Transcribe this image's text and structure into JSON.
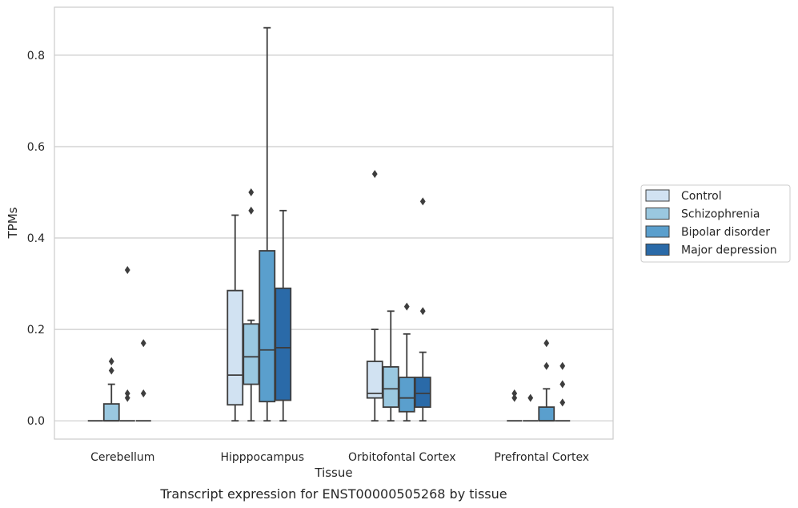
{
  "chart_data": {
    "type": "box",
    "caption": "Transcript expression for ENST00000505268 by tissue",
    "xlabel": "Tissue",
    "ylabel": "TPMs",
    "ylim": [
      -0.04,
      0.905
    ],
    "yticks": [
      0.0,
      0.2,
      0.4,
      0.6,
      0.8
    ],
    "ytick_labels": [
      "0.0",
      "0.2",
      "0.4",
      "0.6",
      "0.8"
    ],
    "grid": "horizontal",
    "legend_position": "right",
    "categories": [
      "Cerebellum",
      "Hipppocampus",
      "Orbitofontal Cortex",
      "Prefrontal Cortex"
    ],
    "series": [
      {
        "name": "Control",
        "color": "#d1e2f2",
        "boxes": [
          {
            "whislo": 0.0,
            "q1": 0.0,
            "med": 0.0,
            "q3": 0.0,
            "whishi": 0.0,
            "fliers": []
          },
          {
            "whislo": 0.0,
            "q1": 0.035,
            "med": 0.1,
            "q3": 0.285,
            "whishi": 0.45,
            "fliers": []
          },
          {
            "whislo": 0.0,
            "q1": 0.05,
            "med": 0.06,
            "q3": 0.13,
            "whishi": 0.2,
            "fliers": [
              0.54
            ]
          },
          {
            "whislo": 0.0,
            "q1": 0.0,
            "med": 0.0,
            "q3": 0.0,
            "whishi": 0.0,
            "fliers": [
              0.05,
              0.06
            ]
          }
        ]
      },
      {
        "name": "Schizophrenia",
        "color": "#9ac8e0",
        "boxes": [
          {
            "whislo": 0.0,
            "q1": 0.0,
            "med": 0.0,
            "q3": 0.037,
            "whishi": 0.08,
            "fliers": [
              0.11,
              0.13
            ]
          },
          {
            "whislo": 0.0,
            "q1": 0.08,
            "med": 0.14,
            "q3": 0.212,
            "whishi": 0.22,
            "fliers": [
              0.46,
              0.5
            ]
          },
          {
            "whislo": 0.0,
            "q1": 0.03,
            "med": 0.07,
            "q3": 0.118,
            "whishi": 0.24,
            "fliers": []
          },
          {
            "whislo": 0.0,
            "q1": 0.0,
            "med": 0.0,
            "q3": 0.0,
            "whishi": 0.0,
            "fliers": [
              0.05
            ]
          }
        ]
      },
      {
        "name": "Bipolar disorder",
        "color": "#5a9fcd",
        "boxes": [
          {
            "whislo": 0.0,
            "q1": 0.0,
            "med": 0.0,
            "q3": 0.0,
            "whishi": 0.0,
            "fliers": [
              0.05,
              0.06,
              0.33
            ]
          },
          {
            "whislo": 0.0,
            "q1": 0.042,
            "med": 0.155,
            "q3": 0.372,
            "whishi": 0.86,
            "fliers": []
          },
          {
            "whislo": 0.0,
            "q1": 0.02,
            "med": 0.05,
            "q3": 0.095,
            "whishi": 0.19,
            "fliers": [
              0.25
            ]
          },
          {
            "whislo": 0.0,
            "q1": 0.0,
            "med": 0.0,
            "q3": 0.03,
            "whishi": 0.07,
            "fliers": [
              0.12,
              0.17
            ]
          }
        ]
      },
      {
        "name": "Major depression",
        "color": "#2a6aa8",
        "boxes": [
          {
            "whislo": 0.0,
            "q1": 0.0,
            "med": 0.0,
            "q3": 0.0,
            "whishi": 0.0,
            "fliers": [
              0.06,
              0.17
            ]
          },
          {
            "whislo": 0.0,
            "q1": 0.045,
            "med": 0.16,
            "q3": 0.29,
            "whishi": 0.46,
            "fliers": []
          },
          {
            "whislo": 0.0,
            "q1": 0.03,
            "med": 0.06,
            "q3": 0.095,
            "whishi": 0.15,
            "fliers": [
              0.24,
              0.48
            ]
          },
          {
            "whislo": 0.0,
            "q1": 0.0,
            "med": 0.0,
            "q3": 0.0,
            "whishi": 0.0,
            "fliers": [
              0.04,
              0.08,
              0.12
            ]
          }
        ]
      }
    ],
    "colors": {
      "grid": "#cccccc",
      "frame": "#cccccc",
      "edge": "#3d3d3d",
      "text": "#262626"
    }
  }
}
